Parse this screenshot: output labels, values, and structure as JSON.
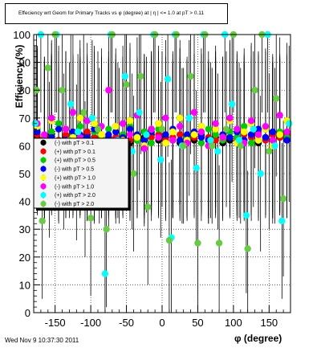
{
  "title": "Effeciency wrt Geom for Primary Tracks vs φ (degree) at | η | <= 1.0 at pT > 0.11",
  "footer": "Wed Nov  9 10:37:30 2011",
  "chart_data": {
    "type": "scatter",
    "xlabel": "φ (degree)",
    "ylabel": "Efficiency (%)",
    "xlim": [
      -180,
      180
    ],
    "ylim": [
      0,
      100
    ],
    "xticks": [
      -150,
      -100,
      -50,
      0,
      50,
      100,
      150
    ],
    "yticks": [
      0,
      10,
      20,
      30,
      40,
      50,
      60,
      70,
      80,
      90,
      100
    ],
    "grid": true,
    "legend_position": "center-left",
    "series": [
      {
        "name": "(-) with pT > 0.1",
        "color": "#000000",
        "x": [
          -175,
          -165,
          -155,
          -145,
          -135,
          -125,
          -115,
          -105,
          -95,
          -85,
          -75,
          -65,
          -55,
          -45,
          -35,
          -25,
          -15,
          -5,
          5,
          15,
          25,
          35,
          45,
          55,
          65,
          75,
          85,
          95,
          105,
          115,
          125,
          135,
          145,
          155,
          165,
          175
        ],
        "y": [
          63,
          62,
          64,
          61,
          63,
          62,
          63,
          64,
          61,
          62,
          63,
          62,
          63,
          61,
          62,
          63,
          64,
          62,
          63,
          62,
          61,
          63,
          62,
          64,
          62,
          63,
          61,
          62,
          63,
          62,
          64,
          61,
          63,
          62,
          63,
          62
        ]
      },
      {
        "name": "(+) with pT > 0.1",
        "color": "#ff0000",
        "x": [
          -175,
          -165,
          -155,
          -145,
          -135,
          -125,
          -115,
          -105,
          -95,
          -85,
          -75,
          -65,
          -55,
          -45,
          -35,
          -25,
          -15,
          -5,
          5,
          15,
          25,
          35,
          45,
          55,
          65,
          75,
          85,
          95,
          105,
          115,
          125,
          135,
          145,
          155,
          165,
          175
        ],
        "y": [
          64,
          63,
          65,
          62,
          64,
          63,
          62,
          65,
          63,
          64,
          62,
          63,
          64,
          62,
          63,
          65,
          63,
          64,
          62,
          63,
          64,
          62,
          63,
          65,
          63,
          62,
          64,
          63,
          62,
          64,
          63,
          65,
          62,
          64,
          63,
          64
        ]
      },
      {
        "name": "(+) with pT > 0.5",
        "color": "#00cc00",
        "x": [
          -175,
          -165,
          -155,
          -145,
          -135,
          -125,
          -115,
          -105,
          -95,
          -85,
          -75,
          -65,
          -55,
          -45,
          -35,
          -25,
          -15,
          -5,
          5,
          15,
          25,
          35,
          45,
          55,
          65,
          75,
          85,
          95,
          105,
          115,
          125,
          135,
          145,
          155,
          165,
          175
        ],
        "y": [
          66,
          60,
          65,
          68,
          62,
          64,
          67,
          61,
          65,
          63,
          66,
          60,
          64,
          67,
          62,
          65,
          61,
          66,
          64,
          62,
          67,
          63,
          65,
          61,
          66,
          64,
          62,
          65,
          63,
          67,
          61,
          64,
          66,
          62,
          65,
          63
        ]
      },
      {
        "name": "(-) with pT > 0.5",
        "color": "#0000ff",
        "x": [
          -175,
          -165,
          -155,
          -145,
          -135,
          -125,
          -115,
          -105,
          -95,
          -85,
          -75,
          -65,
          -55,
          -45,
          -35,
          -25,
          -15,
          -5,
          5,
          15,
          25,
          35,
          45,
          55,
          65,
          75,
          85,
          95,
          105,
          115,
          125,
          135,
          145,
          155,
          165,
          175
        ],
        "y": [
          65,
          64,
          63,
          66,
          62,
          65,
          64,
          63,
          66,
          62,
          64,
          65,
          63,
          66,
          64,
          62,
          65,
          63,
          64,
          66,
          62,
          64,
          65,
          63,
          62,
          66,
          64,
          63,
          65,
          62,
          64,
          66,
          63,
          65,
          64,
          62
        ]
      },
      {
        "name": "(+) with pT > 1.0",
        "color": "#ffff00",
        "x": [
          -175,
          -165,
          -155,
          -145,
          -135,
          -125,
          -115,
          -105,
          -95,
          -85,
          -75,
          -65,
          -55,
          -45,
          -35,
          -25,
          -15,
          -5,
          5,
          15,
          25,
          35,
          45,
          55,
          65,
          75,
          85,
          95,
          105,
          115,
          125,
          135,
          145,
          155,
          165,
          175
        ],
        "y": [
          67,
          62,
          69,
          60,
          66,
          63,
          70,
          61,
          68,
          64,
          59,
          67,
          62,
          69,
          63,
          60,
          66,
          68,
          61,
          65,
          70,
          62,
          64,
          67,
          60,
          66,
          63,
          69,
          61,
          65,
          68,
          62,
          66,
          60,
          64,
          69
        ]
      },
      {
        "name": "(-) with pT > 1.0",
        "color": "#ff00ff",
        "x": [
          -175,
          -165,
          -155,
          -145,
          -135,
          -125,
          -115,
          -105,
          -95,
          -85,
          -75,
          -65,
          -55,
          -45,
          -35,
          -25,
          -15,
          -5,
          5,
          15,
          25,
          35,
          45,
          55,
          65,
          75,
          85,
          95,
          105,
          115,
          125,
          135,
          145,
          155,
          165,
          175
        ],
        "y": [
          68,
          64,
          70,
          61,
          66,
          72,
          63,
          69,
          60,
          67,
          80,
          62,
          68,
          64,
          71,
          59,
          66,
          63,
          70,
          62,
          67,
          61,
          72,
          65,
          60,
          68,
          63,
          70,
          66,
          61,
          69,
          64,
          67,
          62,
          71,
          65
        ]
      },
      {
        "name": "(+) with pT > 2.0",
        "color": "#00ffff",
        "x": [
          -178,
          -170,
          -158,
          -148,
          -138,
          -128,
          -118,
          -108,
          -98,
          -88,
          -80,
          -72,
          -62,
          -52,
          -42,
          -32,
          -22,
          -12,
          -2,
          8,
          13,
          18,
          28,
          38,
          48,
          58,
          68,
          78,
          88,
          98,
          108,
          118,
          128,
          138,
          148,
          158,
          168,
          178
        ],
        "y": [
          68,
          100,
          55,
          100,
          58,
          75,
          65,
          48,
          70,
          60,
          14,
          100,
          62,
          85,
          58,
          72,
          64,
          100,
          55,
          84,
          27,
          100,
          60,
          70,
          52,
          100,
          62,
          58,
          100,
          75,
          62,
          35,
          66,
          50,
          100,
          60,
          33,
          68
        ]
      },
      {
        "name": "(-) with pT > 2.0",
        "color": "#66cc44",
        "x": [
          -176,
          -168,
          -160,
          -150,
          -140,
          -130,
          -120,
          -110,
          -100,
          -90,
          -78,
          -70,
          -60,
          -50,
          -40,
          -30,
          -20,
          -10,
          0,
          10,
          20,
          30,
          40,
          50,
          60,
          70,
          80,
          90,
          100,
          110,
          120,
          130,
          140,
          150,
          160,
          170
        ],
        "y": [
          80,
          33,
          88,
          100,
          80,
          62,
          54,
          72,
          34,
          66,
          30,
          100,
          60,
          82,
          50,
          85,
          38,
          100,
          66,
          26,
          100,
          60,
          85,
          25,
          100,
          60,
          25,
          66,
          100,
          60,
          23,
          80,
          100,
          58,
          77,
          41
        ]
      }
    ]
  }
}
